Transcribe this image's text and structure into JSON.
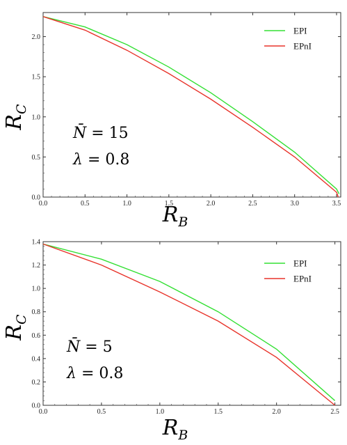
{
  "chart_data": [
    {
      "type": "line",
      "xlabel": "R",
      "xlabel_sub": "B",
      "ylabel": "R",
      "ylabel_sub": "C",
      "xlim": [
        0,
        3.55
      ],
      "ylim": [
        0,
        2.3
      ],
      "xticks": [
        "0.0",
        "0.5",
        "1.0",
        "1.5",
        "2.0",
        "2.5",
        "3.0",
        "3.5"
      ],
      "yticks": [
        "0.0",
        "0.5",
        "1.0",
        "1.5",
        "2.0"
      ],
      "xtick_values": [
        0,
        0.5,
        1.0,
        1.5,
        2.0,
        2.5,
        3.0,
        3.5
      ],
      "ytick_values": [
        0,
        0.5,
        1.0,
        1.5,
        2.0
      ],
      "legend_position": "top-right",
      "annotations": [
        {
          "symbol": "N̄",
          "text": " = 15"
        },
        {
          "symbol": "λ",
          "text": " = 0.8"
        }
      ],
      "series": [
        {
          "name": "EPI",
          "color": "#33e033",
          "x": [
            0,
            0.5,
            1.0,
            1.5,
            2.0,
            2.5,
            3.0,
            3.5,
            3.53
          ],
          "y": [
            2.25,
            2.12,
            1.9,
            1.62,
            1.3,
            0.94,
            0.56,
            0.1,
            0.04
          ]
        },
        {
          "name": "EPnI",
          "color": "#e8332a",
          "x": [
            0,
            0.5,
            1.0,
            1.5,
            2.0,
            2.5,
            3.0,
            3.5,
            3.52
          ],
          "y": [
            2.25,
            2.08,
            1.83,
            1.54,
            1.22,
            0.87,
            0.5,
            0.06,
            0.0
          ]
        }
      ]
    },
    {
      "type": "line",
      "xlabel": "R",
      "xlabel_sub": "B",
      "ylabel": "R",
      "ylabel_sub": "C",
      "xlim": [
        0,
        2.55
      ],
      "ylim": [
        0,
        1.4
      ],
      "xticks": [
        "0.0",
        "0.5",
        "1.0",
        "1.5",
        "2.0",
        "2.5"
      ],
      "yticks": [
        "0.0",
        "0.2",
        "0.4",
        "0.6",
        "0.8",
        "1.0",
        "1.2",
        "1.4"
      ],
      "xtick_values": [
        0,
        0.5,
        1.0,
        1.5,
        2.0,
        2.5
      ],
      "ytick_values": [
        0,
        0.2,
        0.4,
        0.6,
        0.8,
        1.0,
        1.2,
        1.4
      ],
      "legend_position": "top-right",
      "annotations": [
        {
          "symbol": "N̄",
          "text": " = 5"
        },
        {
          "symbol": "λ",
          "text": " = 0.8"
        }
      ],
      "series": [
        {
          "name": "EPI",
          "color": "#33e033",
          "x": [
            0,
            0.5,
            1.0,
            1.5,
            2.0,
            2.5
          ],
          "y": [
            1.38,
            1.25,
            1.06,
            0.8,
            0.48,
            0.04
          ]
        },
        {
          "name": "EPnI",
          "color": "#e8332a",
          "x": [
            0,
            0.5,
            1.0,
            1.5,
            2.0,
            2.5
          ],
          "y": [
            1.38,
            1.2,
            0.97,
            0.72,
            0.41,
            0.0
          ]
        }
      ]
    }
  ]
}
